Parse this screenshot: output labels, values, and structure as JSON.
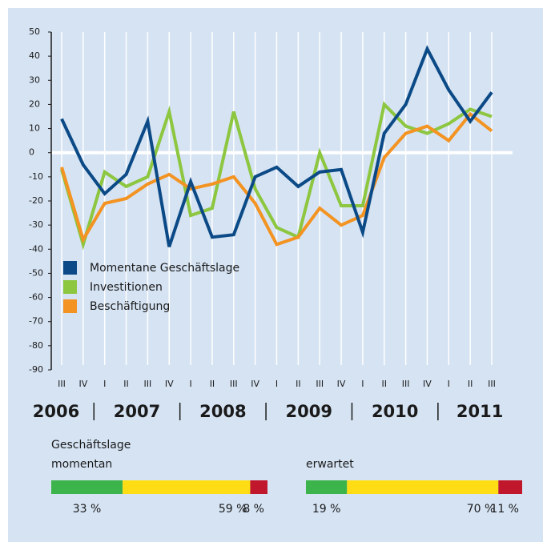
{
  "chart_data": [
    {
      "type": "line",
      "categories": [
        "III",
        "IV",
        "I",
        "II",
        "III",
        "IV",
        "I",
        "II",
        "III",
        "IV",
        "I",
        "II",
        "III",
        "IV",
        "I",
        "II",
        "III",
        "IV",
        "I",
        "II",
        "III"
      ],
      "year_labels": [
        "2006",
        "2007",
        "2008",
        "2009",
        "2010",
        "2011"
      ],
      "series": [
        {
          "name": "Momentane Geschäftslage",
          "color": "#0b4a86",
          "values": [
            14,
            -5,
            -17,
            -9,
            13,
            -39,
            -12,
            -35,
            -34,
            -10,
            -6,
            -14,
            -8,
            -7,
            -33,
            8,
            20,
            43,
            26,
            13,
            25
          ]
        },
        {
          "name": "Investitionen",
          "color": "#8dc63f",
          "values": [
            -7,
            -38,
            -8,
            -14,
            -10,
            17,
            -26,
            -23,
            17,
            -15,
            -31,
            -35,
            0,
            -22,
            -22,
            20,
            11,
            8,
            12,
            18,
            15
          ]
        },
        {
          "name": "Beschäftigung",
          "color": "#f39322",
          "values": [
            -6,
            -36,
            -21,
            -19,
            -13,
            -9,
            -15,
            -13,
            -10,
            -21,
            -38,
            -35,
            -23,
            -30,
            -26,
            -2,
            8,
            11,
            5,
            16,
            9
          ]
        }
      ],
      "ylim": [
        -90,
        50
      ],
      "yticks": [
        50,
        40,
        30,
        20,
        10,
        0,
        -10,
        -20,
        -30,
        -40,
        -50,
        -60,
        -70,
        -80,
        -90
      ],
      "grid": true,
      "legend": "lower left"
    },
    {
      "type": "stacked_bar",
      "title": "Geschäftslage",
      "categories": [
        "momentan",
        "erwartet"
      ],
      "series": [
        {
          "color": "#3cb44b",
          "values": [
            33,
            19
          ],
          "value_labels": [
            "33 %",
            "19 %"
          ]
        },
        {
          "color": "#ffdd15",
          "values": [
            59,
            70
          ],
          "value_labels": [
            "59 %",
            "70 %"
          ]
        },
        {
          "color": "#c0172d",
          "values": [
            8,
            11
          ],
          "value_labels": [
            "8 %",
            "11 %"
          ]
        }
      ]
    }
  ]
}
